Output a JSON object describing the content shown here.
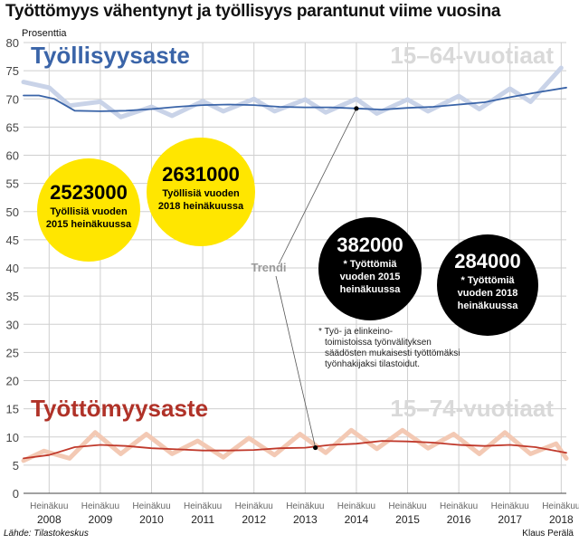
{
  "headline": "Työttömyys vähentynyt ja työllisyys parantunut viime vuosina",
  "source": "Lähde: Tilastokeskus",
  "author": "Klaus Perälä",
  "annotations": {
    "employment_title": "Työllisyysaste",
    "employment_age": "15–64-vuotiaat",
    "unemployment_title": "Työttömyysaste",
    "unemployment_age": "15–74-vuotiaat",
    "trend": "Trendi",
    "footnote": [
      "* Työ- ja elinkeino-",
      "toimistoissa työnvälityksen",
      "säädösten mukaisesti työttömäksi",
      "työnhakijaksi tilastoidut."
    ]
  },
  "circles": [
    {
      "value": "2523000",
      "lines": [
        "Työllisiä vuoden",
        "2015 heinäkuussa"
      ],
      "color": "#ffe600",
      "text_color": "#000000"
    },
    {
      "value": "2631000",
      "lines": [
        "Työllisiä vuoden",
        "2018 heinäkuussa"
      ],
      "color": "#ffe600",
      "text_color": "#000000"
    },
    {
      "value": "382000",
      "lines": [
        "* Työttömiä",
        "vuoden 2015",
        "heinäkuussa"
      ],
      "color": "#000000",
      "text_color": "#ffffff"
    },
    {
      "value": "284000",
      "lines": [
        "* Työttömiä",
        "vuoden 2018",
        "heinäkuussa"
      ],
      "color": "#000000",
      "text_color": "#ffffff"
    }
  ],
  "chart_data": {
    "type": "line",
    "ylabel": "Prosenttia",
    "ylim": [
      0,
      80
    ],
    "yticks": [
      0,
      5,
      10,
      15,
      20,
      25,
      30,
      35,
      40,
      45,
      50,
      55,
      60,
      65,
      70,
      75,
      80
    ],
    "xlim": [
      2008.0,
      2018.6
    ],
    "xticks": [
      {
        "x": 2008.5,
        "month": "Heinäkuu",
        "year": "2008"
      },
      {
        "x": 2009.5,
        "month": "Heinäkuu",
        "year": "2009"
      },
      {
        "x": 2010.5,
        "month": "Heinäkuu",
        "year": "2010"
      },
      {
        "x": 2011.5,
        "month": "Heinäkuu",
        "year": "2011"
      },
      {
        "x": 2012.5,
        "month": "Heinäkuu",
        "year": "2012"
      },
      {
        "x": 2013.5,
        "month": "Heinäkuu",
        "year": "2013"
      },
      {
        "x": 2014.5,
        "month": "Heinäkuu",
        "year": "2014"
      },
      {
        "x": 2015.5,
        "month": "Heinäkuu",
        "year": "2015"
      },
      {
        "x": 2016.5,
        "month": "Heinäkuu",
        "year": "2016"
      },
      {
        "x": 2017.5,
        "month": "Heinäkuu",
        "year": "2017"
      },
      {
        "x": 2018.5,
        "month": "Heinäkuu",
        "year": "2018"
      }
    ],
    "grid": true,
    "series": [
      {
        "name": "Työllisyysaste",
        "kind": "monthly",
        "color": "#c9d3e8",
        "x": [
          2008.0,
          2008.5,
          2008.9,
          2009.5,
          2009.9,
          2010.5,
          2010.9,
          2011.5,
          2011.9,
          2012.5,
          2012.9,
          2013.5,
          2013.9,
          2014.5,
          2014.9,
          2015.5,
          2015.9,
          2016.5,
          2016.9,
          2017.5,
          2017.9,
          2018.5
        ],
        "values": [
          73.0,
          72.0,
          68.8,
          69.5,
          66.8,
          68.6,
          67.0,
          69.6,
          67.8,
          70.0,
          67.8,
          69.9,
          67.6,
          70.0,
          67.4,
          69.9,
          67.8,
          70.5,
          68.2,
          71.8,
          69.5,
          75.5
        ]
      },
      {
        "name": "Trendi",
        "kind": "trend",
        "color": "#3a64a8",
        "x": [
          2008.0,
          2008.3,
          2008.6,
          2009.0,
          2009.5,
          2010.0,
          2010.5,
          2011.0,
          2011.5,
          2012.0,
          2012.5,
          2013.0,
          2013.5,
          2014.0,
          2014.5,
          2015.0,
          2015.5,
          2016.0,
          2016.5,
          2017.0,
          2017.5,
          2018.0,
          2018.6
        ],
        "values": [
          70.6,
          70.6,
          70.0,
          67.9,
          67.8,
          67.9,
          68.2,
          68.6,
          68.9,
          69.0,
          68.9,
          68.6,
          68.5,
          68.5,
          68.3,
          68.1,
          68.4,
          68.6,
          69.0,
          69.4,
          70.3,
          71.1,
          72.0
        ]
      },
      {
        "name": "Työttömyysaste",
        "kind": "monthly",
        "color": "#f3c9b4",
        "x": [
          2008.0,
          2008.4,
          2008.9,
          2009.4,
          2009.9,
          2010.4,
          2010.9,
          2011.4,
          2011.9,
          2012.4,
          2012.9,
          2013.4,
          2013.9,
          2014.4,
          2014.9,
          2015.4,
          2015.9,
          2016.4,
          2016.9,
          2017.4,
          2017.9,
          2018.4,
          2018.6
        ],
        "values": [
          5.8,
          7.5,
          6.2,
          10.8,
          7.0,
          10.5,
          7.0,
          9.3,
          6.4,
          9.8,
          6.8,
          10.5,
          7.2,
          11.2,
          7.9,
          11.2,
          8.0,
          10.5,
          7.0,
          10.8,
          7.0,
          8.8,
          6.2
        ]
      },
      {
        "name": "Trendi",
        "kind": "trend",
        "color": "#c0392b",
        "x": [
          2008.0,
          2008.5,
          2009.0,
          2009.5,
          2010.0,
          2010.5,
          2011.0,
          2011.5,
          2012.0,
          2012.5,
          2013.0,
          2013.5,
          2014.0,
          2014.5,
          2015.0,
          2015.5,
          2016.0,
          2016.5,
          2017.0,
          2017.5,
          2018.0,
          2018.6
        ],
        "values": [
          6.2,
          6.8,
          8.2,
          8.6,
          8.4,
          8.0,
          7.8,
          7.6,
          7.6,
          7.7,
          8.0,
          8.1,
          8.6,
          8.8,
          9.3,
          9.2,
          9.0,
          8.6,
          8.4,
          8.6,
          8.2,
          7.2
        ]
      }
    ]
  }
}
